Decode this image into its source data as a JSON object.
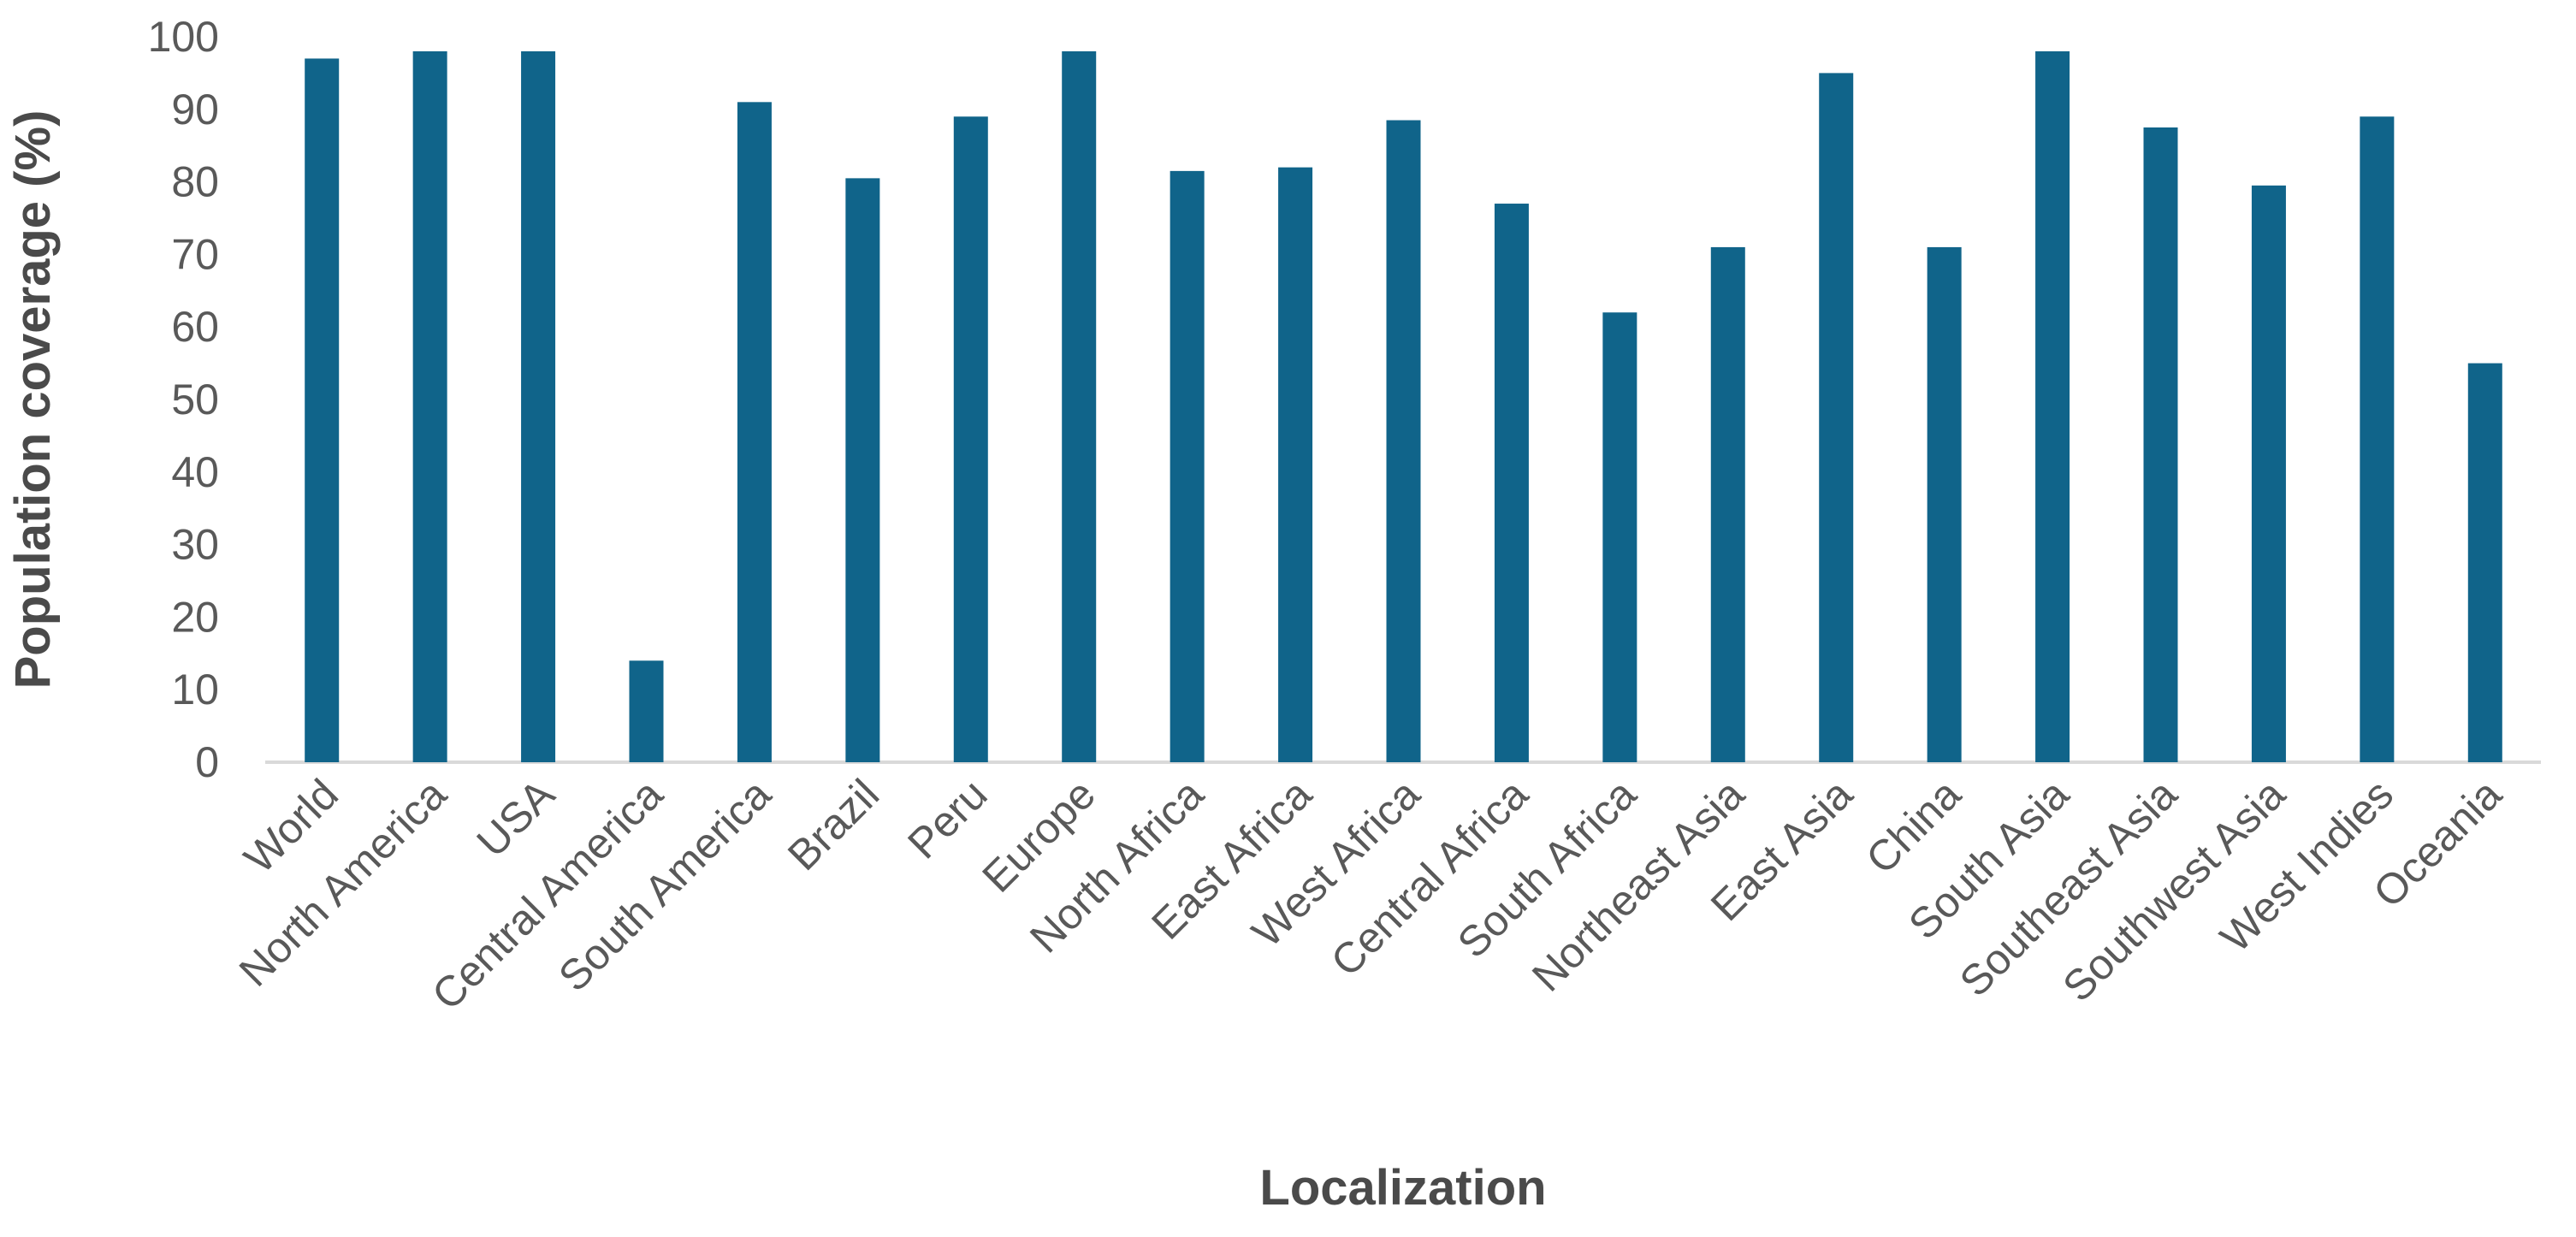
{
  "chart_data": {
    "type": "bar",
    "title": "",
    "xlabel": "Localization",
    "ylabel": "Population coverage (%)",
    "categories": [
      "World",
      "North America",
      "USA",
      "Central America",
      "South America",
      "Brazil",
      "Peru",
      "Europe",
      "North Africa",
      "East Africa",
      "West Africa",
      "Central Africa",
      "South Africa",
      "Northeast Asia",
      "East Asia",
      "China",
      "South Asia",
      "Southeast Asia",
      "Southwest Asia",
      "West Indies",
      "Oceania"
    ],
    "values": [
      97,
      98,
      98,
      14,
      91,
      80.5,
      89,
      98,
      81.5,
      82,
      88.5,
      77,
      62,
      71,
      95,
      71,
      98,
      87.5,
      79.5,
      89,
      55
    ],
    "ylim": [
      0,
      100
    ],
    "yticks": [
      0,
      10,
      20,
      30,
      40,
      50,
      60,
      70,
      80,
      90,
      100
    ],
    "grid": false,
    "legend": "none",
    "x_label_rotation_deg": 45,
    "bar_color": "#10648A",
    "axis_line_color": "#D9D9D9",
    "tick_label_color": "#595959",
    "axis_title_color": "#4A4A4A",
    "background": "#FFFFFF"
  }
}
